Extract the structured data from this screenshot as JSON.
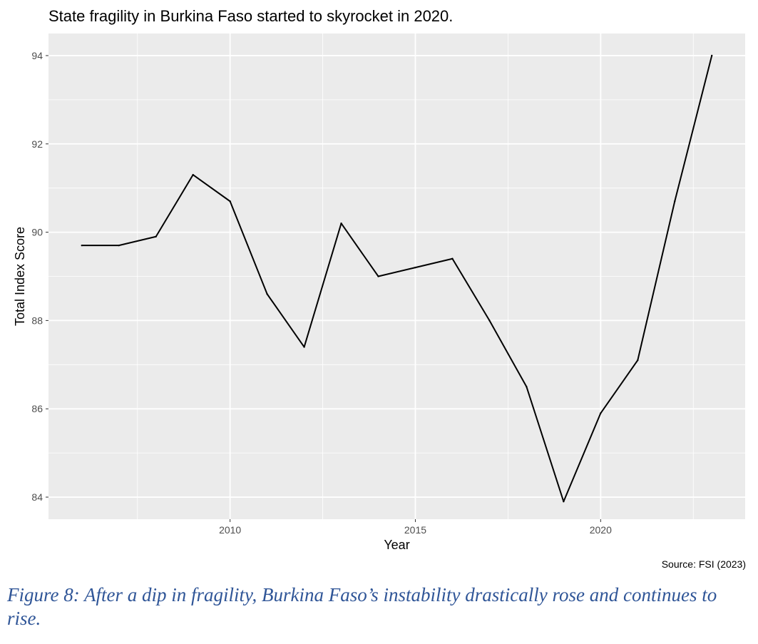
{
  "chart_data": {
    "type": "line",
    "title": "State fragility in Burkina Faso started to skyrocket in 2020.",
    "xlabel": "Year",
    "ylabel": "Total Index Score",
    "x_ticks": [
      2010,
      2015,
      2020
    ],
    "y_ticks": [
      84,
      86,
      88,
      90,
      92,
      94
    ],
    "xlim": [
      2005.1,
      2023.9
    ],
    "ylim": [
      83.5,
      94.5
    ],
    "grid": true,
    "background": "#ebebeb",
    "gridline_color": "#ffffff",
    "line_color": "#000000",
    "series": [
      {
        "x": [
          2006,
          2007,
          2008,
          2009,
          2010,
          2011,
          2012,
          2013,
          2014,
          2015,
          2016,
          2017,
          2018,
          2019,
          2020,
          2021,
          2022,
          2023
        ],
        "values": [
          89.7,
          89.7,
          89.9,
          91.3,
          90.7,
          88.6,
          87.4,
          90.2,
          89.0,
          89.2,
          89.4,
          88.0,
          86.5,
          83.9,
          85.9,
          87.1,
          90.7,
          94.0
        ]
      }
    ],
    "source": "Source: FSI (2023)"
  },
  "caption": "Figure 8: After a dip in fragility, Burkina Faso’s instability drastically rose and continues to rise."
}
